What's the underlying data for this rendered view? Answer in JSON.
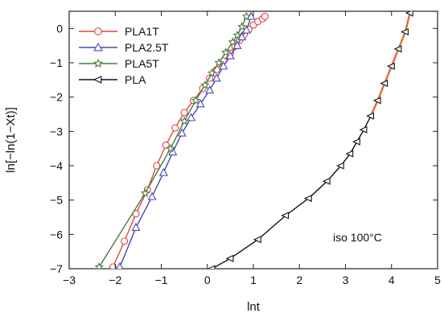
{
  "chart_data": {
    "type": "line",
    "title": "",
    "xlabel": "lnt",
    "ylabel": "ln[−ln(1−Xt)]",
    "xlim": [
      -3,
      5
    ],
    "ylim": [
      -7,
      0.5
    ],
    "xticks": [
      "−3",
      "−2",
      "−1",
      "0",
      "1",
      "2",
      "3",
      "4",
      "5"
    ],
    "yticks": [
      "0",
      "−1",
      "−2",
      "−3",
      "−4",
      "−5",
      "−6",
      "−7"
    ],
    "grid": false,
    "legend_position": "top-left",
    "annotation": "iso 100°C",
    "series": [
      {
        "name": "PLA1T",
        "color": "#e0443c",
        "marker": "circle",
        "x": [
          -2.05,
          -1.8,
          -1.55,
          -1.3,
          -1.1,
          -0.9,
          -0.7,
          -0.5,
          -0.3,
          -0.1,
          0.05,
          0.2,
          0.35,
          0.5,
          0.6,
          0.7,
          0.8,
          0.9,
          1.0,
          1.1,
          1.2,
          1.25
        ],
        "y": [
          -6.95,
          -6.2,
          -5.4,
          -4.7,
          -4.0,
          -3.4,
          -2.9,
          -2.45,
          -2.1,
          -1.75,
          -1.45,
          -1.2,
          -0.95,
          -0.72,
          -0.52,
          -0.35,
          -0.18,
          -0.03,
          0.1,
          0.2,
          0.28,
          0.35
        ]
      },
      {
        "name": "PLA2.5T",
        "color": "#4848b8",
        "marker": "triangle-up",
        "x": [
          -1.9,
          -1.55,
          -1.2,
          -0.95,
          -0.75,
          -0.55,
          -0.35,
          -0.15,
          0.05,
          0.2,
          0.35,
          0.5,
          0.65,
          0.75,
          0.85,
          0.95
        ],
        "y": [
          -6.95,
          -5.8,
          -4.9,
          -4.2,
          -3.6,
          -3.05,
          -2.6,
          -2.2,
          -1.8,
          -1.45,
          -1.1,
          -0.8,
          -0.5,
          -0.25,
          -0.05,
          0.35
        ]
      },
      {
        "name": "PLA5T",
        "color": "#4a7c3a",
        "marker": "star",
        "x": [
          -2.35,
          -1.35,
          -0.8,
          -0.5,
          -0.25,
          -0.05,
          0.1,
          0.25,
          0.4,
          0.55,
          0.65,
          0.75,
          0.85
        ],
        "y": [
          -6.95,
          -4.8,
          -3.5,
          -2.7,
          -2.1,
          -1.65,
          -1.3,
          -1.0,
          -0.7,
          -0.4,
          -0.2,
          0.05,
          0.35
        ]
      },
      {
        "name": "PLA",
        "color": "#111111",
        "marker": "triangle-left",
        "x": [
          0.1,
          0.5,
          1.1,
          1.7,
          2.2,
          2.6,
          2.9,
          3.1,
          3.25,
          3.4,
          3.55,
          3.7,
          3.85,
          4.0,
          4.15,
          4.3,
          4.4
        ],
        "y": [
          -7.0,
          -6.7,
          -6.15,
          -5.45,
          -4.95,
          -4.45,
          -4.0,
          -3.65,
          -3.3,
          -2.95,
          -2.55,
          -2.1,
          -1.6,
          -1.1,
          -0.6,
          -0.1,
          0.45
        ],
        "highlight_segment": {
          "color": "#e06a3a",
          "x_from": 3.55,
          "x_to": 4.4
        }
      }
    ]
  }
}
